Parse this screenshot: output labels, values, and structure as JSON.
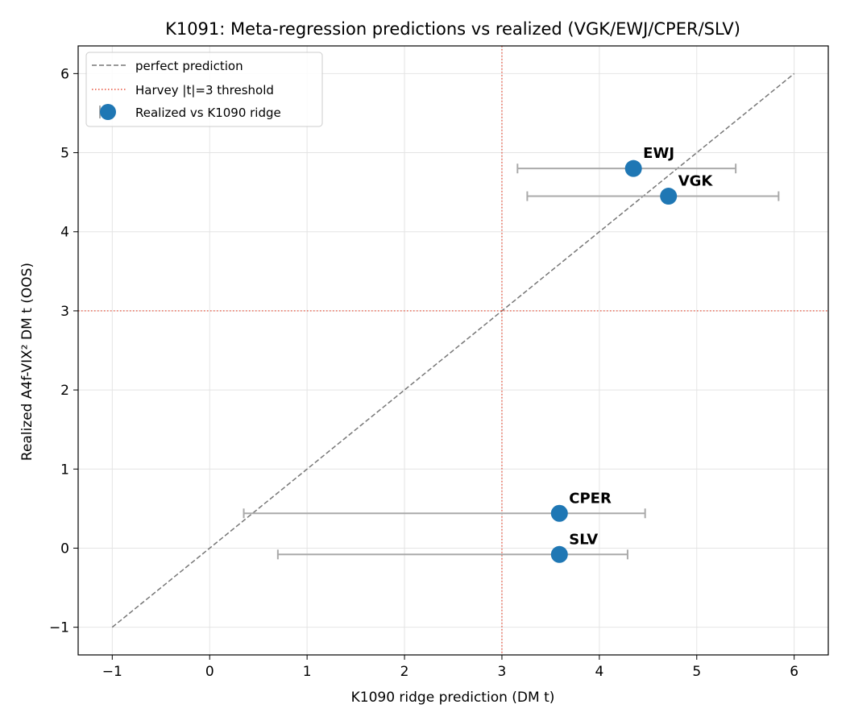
{
  "chart_data": {
    "type": "scatter",
    "title": "K1091: Meta-regression predictions vs realized (VGK/EWJ/CPER/SLV)",
    "xlabel": "K1090 ridge prediction (DM t)",
    "ylabel": "Realized A4f-VIX² DM t (OOS)",
    "xlim": [
      -1.35,
      6.35
    ],
    "ylim": [
      -1.35,
      6.35
    ],
    "xticks": [
      -1,
      0,
      1,
      2,
      3,
      4,
      5,
      6
    ],
    "yticks": [
      -1,
      0,
      1,
      2,
      3,
      4,
      5,
      6
    ],
    "xtick_labels": [
      "−1",
      "0",
      "1",
      "2",
      "3",
      "4",
      "5",
      "6"
    ],
    "ytick_labels": [
      "−1",
      "0",
      "1",
      "2",
      "3",
      "4",
      "5",
      "6"
    ],
    "grid": true,
    "legend_position": "top-left",
    "series": [
      {
        "name": "Realized vs K1090 ridge",
        "color": "#1f77b4",
        "points": [
          {
            "label": "VGK",
            "x": 4.71,
            "y": 4.45,
            "xerr_low": 3.26,
            "xerr_high": 5.84
          },
          {
            "label": "EWJ",
            "x": 4.35,
            "y": 4.8,
            "xerr_low": 3.16,
            "xerr_high": 5.4
          },
          {
            "label": "CPER",
            "x": 3.59,
            "y": 0.44,
            "xerr_low": 0.35,
            "xerr_high": 4.47
          },
          {
            "label": "SLV",
            "x": 3.59,
            "y": -0.08,
            "xerr_low": 0.7,
            "xerr_high": 4.29
          }
        ]
      }
    ],
    "reference_lines": [
      {
        "name": "perfect prediction",
        "type": "diagonal",
        "from": [
          -1,
          -1
        ],
        "to": [
          6,
          6
        ],
        "color": "#777777",
        "style": "dashed"
      },
      {
        "name": "Harvey |t|=3 threshold",
        "type": "threshold",
        "x": 3,
        "y": 3,
        "color": "#e8503a",
        "style": "dotted"
      }
    ]
  }
}
